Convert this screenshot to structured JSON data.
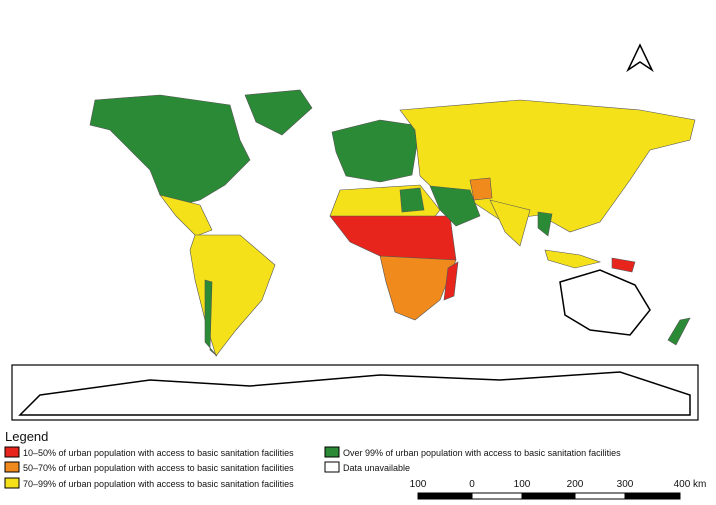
{
  "legend": {
    "title": "Legend",
    "items": [
      {
        "label": "10–50% of urban population with access to basic sanitation facilities",
        "color": "#e8251c"
      },
      {
        "label": "50–70% of urban population with access to basic sanitation facilities",
        "color": "#f08a1d"
      },
      {
        "label": "70–99% of urban population with access to basic sanitation facilities",
        "color": "#f5e11a"
      },
      {
        "label": "Over 99% of urban population with access to basic sanitation facilities",
        "color": "#2a8a35"
      },
      {
        "label": "Data unavailable",
        "color": "#ffffff"
      }
    ]
  },
  "scale_bar": {
    "labels": [
      "100",
      "0",
      "100",
      "200",
      "300",
      "400 km"
    ]
  }
}
